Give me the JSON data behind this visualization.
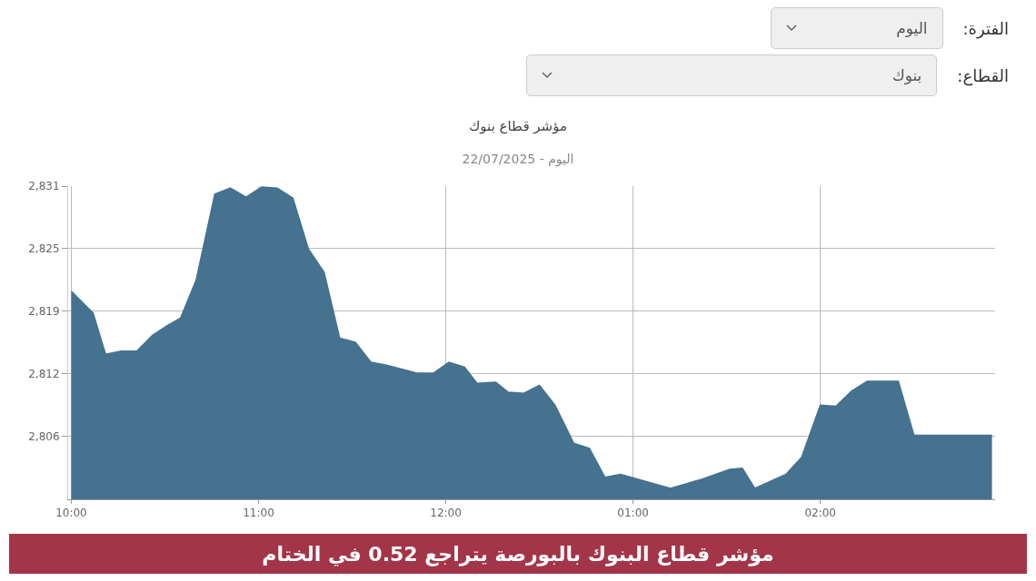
{
  "chart_data": {
    "type": "area",
    "title": "مؤشر قطاع بنوك",
    "subtitle": "اليوم - 22/07/2025",
    "annotations": [
      "الفترة:",
      "اليوم",
      "القطاع:",
      "بنوك",
      "مؤشر قطاع البنوك بالبورصة يتراجع 0.52 في الختام"
    ],
    "x": [
      "2025-07-22T10:00",
      "2025-07-22T10:07",
      "2025-07-22T10:11",
      "2025-07-22T10:16",
      "2025-07-22T10:21",
      "2025-07-22T10:26",
      "2025-07-22T10:31",
      "2025-07-22T10:35",
      "2025-07-22T10:40",
      "2025-07-22T10:46",
      "2025-07-22T10:51",
      "2025-07-22T10:56",
      "2025-07-22T11:01",
      "2025-07-22T11:06",
      "2025-07-22T11:11",
      "2025-07-22T11:16",
      "2025-07-22T11:21",
      "2025-07-22T11:26",
      "2025-07-22T11:31",
      "2025-07-22T11:36",
      "2025-07-22T11:41",
      "2025-07-22T11:46",
      "2025-07-22T11:51",
      "2025-07-22T11:56",
      "2025-07-22T12:01",
      "2025-07-22T12:06",
      "2025-07-22T12:10",
      "2025-07-22T12:16",
      "2025-07-22T12:20",
      "2025-07-22T12:25",
      "2025-07-22T12:30",
      "2025-07-22T12:35",
      "2025-07-22T12:41",
      "2025-07-22T12:46",
      "2025-07-22T12:51",
      "2025-07-22T12:56",
      "2025-07-22T13:05",
      "2025-07-22T13:12",
      "2025-07-22T13:22",
      "2025-07-22T13:31",
      "2025-07-22T13:35",
      "2025-07-22T13:39",
      "2025-07-22T13:49",
      "2025-07-22T13:54",
      "2025-07-22T14:00",
      "2025-07-22T14:05",
      "2025-07-22T14:10",
      "2025-07-22T14:15",
      "2025-07-22T14:25",
      "2025-07-22T14:30",
      "2025-07-22T14:55"
    ],
    "series": [
      {
        "color": "#45728f",
        "values": [
          2820.5,
          2818.3,
          2814.2,
          2814.5,
          2814.5,
          2816.1,
          2817.1,
          2817.8,
          2821.6,
          2830.2,
          2830.8,
          2829.9,
          2830.9,
          2830.8,
          2829.8,
          2824.7,
          2822.4,
          2815.8,
          2815.4,
          2813.4,
          2813.1,
          2812.7,
          2812.3,
          2812.3,
          2813.4,
          2812.9,
          2811.3,
          2811.4,
          2810.4,
          2810.3,
          2811.1,
          2809.1,
          2805.3,
          2804.8,
          2801.9,
          2802.2,
          2801.4,
          2800.8,
          2801.7,
          2802.7,
          2802.8,
          2800.8,
          2802.2,
          2803.9,
          2809.1,
          2809.0,
          2810.5,
          2811.5,
          2811.5,
          2806.1,
          2806.1
        ]
      }
    ],
    "xlim": [
      "2025-07-22T09:59",
      "2025-07-22T14:56"
    ],
    "xticks": [
      {
        "value": "2025-07-22T10:00",
        "label": "10:00"
      },
      {
        "value": "2025-07-22T11:00",
        "label": "11:00"
      },
      {
        "value": "2025-07-22T12:00",
        "label": "12:00"
      },
      {
        "value": "2025-07-22T13:00",
        "label": "01:00"
      },
      {
        "value": "2025-07-22T14:00",
        "label": "02:00"
      }
    ],
    "ylim": [
      2799.7,
      2831
    ],
    "yticks": [
      {
        "value": 2806,
        "label": "2,806"
      },
      {
        "value": 2812.25,
        "label": "2,812"
      },
      {
        "value": 2818.5,
        "label": "2,819"
      },
      {
        "value": 2824.75,
        "label": "2,825"
      },
      {
        "value": 2831,
        "label": "2,831"
      }
    ],
    "grid": true,
    "legend": false,
    "marker": "none",
    "line_style": "solid"
  }
}
